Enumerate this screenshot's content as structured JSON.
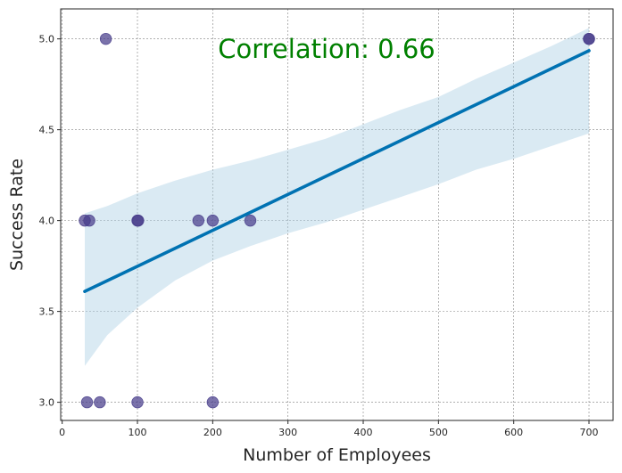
{
  "chart_data": {
    "type": "scatter",
    "xlabel": "Number of Employees",
    "ylabel": "Success Rate",
    "xlim": [
      -2,
      732
    ],
    "ylim": [
      2.9,
      5.165
    ],
    "x_ticks": [
      0,
      100,
      200,
      300,
      400,
      500,
      600,
      700
    ],
    "y_ticks": [
      3.0,
      3.5,
      4.0,
      4.5,
      5.0
    ],
    "x_tick_labels": [
      "0",
      "100",
      "200",
      "300",
      "400",
      "500",
      "600",
      "700"
    ],
    "y_tick_labels": [
      "3.0",
      "3.5",
      "4.0",
      "4.5",
      "5.0"
    ],
    "grid": true,
    "points": [
      {
        "x": 58,
        "y": 5.0
      },
      {
        "x": 700,
        "y": 5.0
      },
      {
        "x": 700,
        "y": 5.0
      },
      {
        "x": 30,
        "y": 4.0
      },
      {
        "x": 36,
        "y": 4.0
      },
      {
        "x": 100,
        "y": 4.0
      },
      {
        "x": 101,
        "y": 4.0
      },
      {
        "x": 181,
        "y": 4.0
      },
      {
        "x": 200,
        "y": 4.0
      },
      {
        "x": 250,
        "y": 4.0
      },
      {
        "x": 33,
        "y": 3.0
      },
      {
        "x": 50,
        "y": 3.0
      },
      {
        "x": 100,
        "y": 3.0
      },
      {
        "x": 200,
        "y": 3.0
      }
    ],
    "regression_line": {
      "x": [
        30,
        700
      ],
      "y": [
        3.61,
        4.935
      ]
    },
    "confidence_band": {
      "x": [
        30,
        60,
        100,
        150,
        200,
        250,
        300,
        350,
        400,
        450,
        500,
        550,
        600,
        650,
        700
      ],
      "lower": [
        3.2,
        3.37,
        3.52,
        3.67,
        3.78,
        3.86,
        3.93,
        3.99,
        4.06,
        4.13,
        4.2,
        4.28,
        4.34,
        4.41,
        4.48
      ],
      "upper": [
        4.04,
        4.08,
        4.15,
        4.22,
        4.28,
        4.33,
        4.39,
        4.45,
        4.53,
        4.61,
        4.68,
        4.78,
        4.87,
        4.96,
        5.06
      ]
    },
    "annotation": "Correlation: 0.66",
    "colors": {
      "points": "#483d8b",
      "line": "#0072b2",
      "band": "#a6cce3",
      "annotation": "#008000",
      "grid": "#808080",
      "axes": "#262626"
    }
  }
}
